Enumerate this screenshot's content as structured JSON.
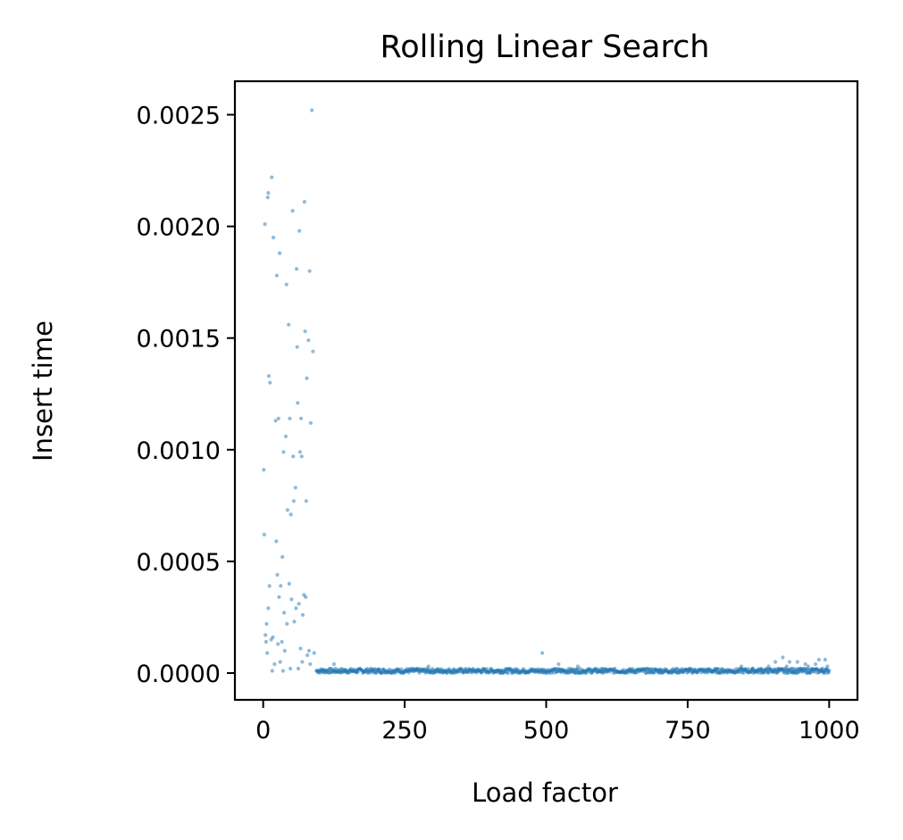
{
  "chart_data": {
    "type": "scatter",
    "title": "Rolling Linear Search",
    "xlabel": "Load factor",
    "ylabel": "Insert time",
    "xlim": [
      -50,
      1050
    ],
    "ylim": [
      -0.00012,
      0.00265
    ],
    "xticks": [
      0,
      250,
      500,
      750,
      1000
    ],
    "xtick_labels": [
      "0",
      "250",
      "500",
      "750",
      "1000"
    ],
    "yticks": [
      0.0,
      0.0005,
      0.001,
      0.0015,
      0.002,
      0.0025
    ],
    "ytick_labels": [
      "0.0000",
      "0.0005",
      "0.0010",
      "0.0015",
      "0.0020",
      "0.0025"
    ],
    "grid": false,
    "point_color": "#1f77b4",
    "series": [
      {
        "points": [
          [
            1,
            0.00091
          ],
          [
            2,
            0.00062
          ],
          [
            3,
            0.00201
          ],
          [
            4,
            0.00017
          ],
          [
            5,
            0.00014
          ],
          [
            6,
            0.00022
          ],
          [
            7,
            9e-05
          ],
          [
            8,
            0.00213
          ],
          [
            9,
            0.00215
          ],
          [
            9,
            0.00029
          ],
          [
            10,
            0.00133
          ],
          [
            11,
            0.00039
          ],
          [
            12,
            0.0013
          ],
          [
            14,
            0.00015
          ],
          [
            15,
            0.00222
          ],
          [
            16,
            1e-05
          ],
          [
            17,
            0.00016
          ],
          [
            18,
            0.00195
          ],
          [
            20,
            4e-05
          ],
          [
            22,
            0.00113
          ],
          [
            23,
            0.00059
          ],
          [
            24,
            0.00178
          ],
          [
            25,
            0.00044
          ],
          [
            26,
            0.00013
          ],
          [
            27,
            0.00114
          ],
          [
            28,
            0.00034
          ],
          [
            29,
            0.00188
          ],
          [
            30,
            5e-05
          ],
          [
            31,
            0.00039
          ],
          [
            33,
            0.00014
          ],
          [
            34,
            0.00052
          ],
          [
            35,
            1e-05
          ],
          [
            36,
            0.00099
          ],
          [
            37,
            0.00027
          ],
          [
            38,
            0.0001
          ],
          [
            40,
            0.00106
          ],
          [
            41,
            0.00174
          ],
          [
            42,
            0.00022
          ],
          [
            43,
            0.00073
          ],
          [
            45,
            0.00156
          ],
          [
            46,
            0.0004
          ],
          [
            47,
            0.00114
          ],
          [
            48,
            2e-05
          ],
          [
            49,
            0.00071
          ],
          [
            50,
            0.00033
          ],
          [
            52,
            0.00207
          ],
          [
            53,
            0.00097
          ],
          [
            54,
            0.00077
          ],
          [
            55,
            0.00023
          ],
          [
            57,
            0.00083
          ],
          [
            58,
            0.00029
          ],
          [
            59,
            0.00181
          ],
          [
            60,
            0.00146
          ],
          [
            61,
            0.00121
          ],
          [
            62,
            2e-05
          ],
          [
            63,
            0.00031
          ],
          [
            64,
            0.00198
          ],
          [
            65,
            0.00099
          ],
          [
            66,
            0.00011
          ],
          [
            67,
            0.00114
          ],
          [
            68,
            0.00097
          ],
          [
            69,
            5e-05
          ],
          [
            70,
            0.00026
          ],
          [
            72,
            0.00035
          ],
          [
            73,
            0.00211
          ],
          [
            74,
            0.00153
          ],
          [
            75,
            0.00034
          ],
          [
            76,
            0.00077
          ],
          [
            77,
            0.00132
          ],
          [
            78,
            8e-05
          ],
          [
            80,
            0.00149
          ],
          [
            81,
            0.0001
          ],
          [
            82,
            0.0018
          ],
          [
            83,
            4e-05
          ],
          [
            84,
            0.00112
          ],
          [
            86,
            0.00252
          ],
          [
            88,
            0.00144
          ],
          [
            90,
            9e-05
          ],
          [
            94,
            1e-05
          ],
          [
            105,
            1e-05
          ],
          [
            125,
            4e-05
          ],
          [
            165,
            1e-05
          ],
          [
            205,
            1e-05
          ],
          [
            292,
            3e-05
          ],
          [
            320,
            1e-05
          ],
          [
            380,
            1e-05
          ],
          [
            420,
            1e-05
          ],
          [
            463,
            1e-05
          ],
          [
            493,
            9e-05
          ],
          [
            522,
            4e-05
          ],
          [
            556,
            3e-05
          ],
          [
            600,
            1e-05
          ],
          [
            650,
            1e-05
          ],
          [
            700,
            1e-05
          ],
          [
            752,
            1e-05
          ],
          [
            800,
            1e-05
          ],
          [
            845,
            3e-05
          ],
          [
            865,
            2e-05
          ],
          [
            880,
            2e-05
          ],
          [
            893,
            3e-05
          ],
          [
            905,
            5e-05
          ],
          [
            910,
            2e-05
          ],
          [
            918,
            7e-05
          ],
          [
            925,
            3e-05
          ],
          [
            930,
            5e-05
          ],
          [
            937,
            2e-05
          ],
          [
            944,
            5e-05
          ],
          [
            950,
            2e-05
          ],
          [
            958,
            4e-05
          ],
          [
            963,
            3e-05
          ],
          [
            970,
            2e-05
          ],
          [
            976,
            4e-05
          ],
          [
            982,
            6e-05
          ],
          [
            988,
            2e-05
          ],
          [
            993,
            6e-05
          ],
          [
            997,
            3e-05
          ]
        ],
        "dense_band": {
          "x_range": [
            95,
            1000
          ],
          "y_range": [
            0.0,
            2e-05
          ]
        }
      }
    ]
  }
}
